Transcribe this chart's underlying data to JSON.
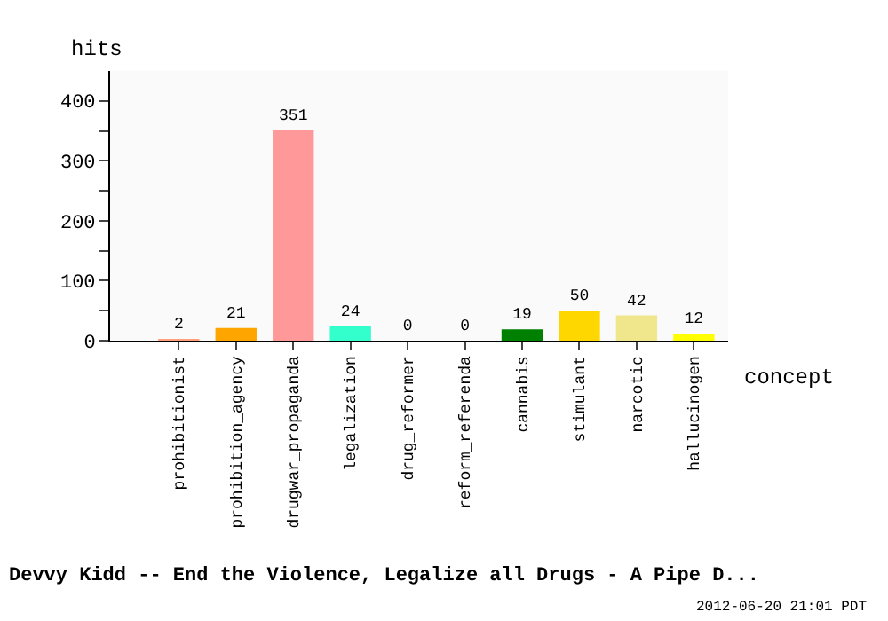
{
  "chart_data": {
    "type": "bar",
    "title": "Devvy Kidd -- End the Violence, Legalize all Drugs - A Pipe D...",
    "xlabel": "concept",
    "ylabel": "hits",
    "categories": [
      "prohibitionist",
      "prohibition_agency",
      "drugwar_propaganda",
      "legalization",
      "drug_reformer",
      "reform_referenda",
      "cannabis",
      "stimulant",
      "narcotic",
      "hallucinogen"
    ],
    "values": [
      2,
      21,
      351,
      24,
      0,
      0,
      19,
      50,
      42,
      12
    ],
    "colors": [
      "#ffa07a",
      "#ffa500",
      "#ff9999",
      "#33ffcc",
      "#99ffff",
      "#99ffff",
      "#008000",
      "#ffd700",
      "#f0e68c",
      "#ffff00"
    ],
    "data_labels": true,
    "ylim": [
      0,
      450
    ],
    "yticks": [
      0,
      {
        "value": 50,
        "label": null
      },
      100,
      {
        "value": 150,
        "label": null
      },
      200,
      {
        "value": 250,
        "label": null
      },
      300,
      {
        "value": 350,
        "label": null
      },
      400
    ],
    "annotations": [
      "2012-06-20 21:01 PDT"
    ]
  }
}
